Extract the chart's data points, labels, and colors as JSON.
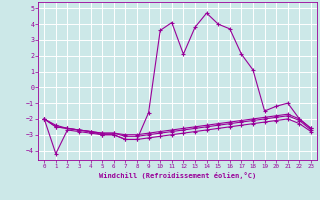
{
  "xlabel": "Windchill (Refroidissement éolien,°C)",
  "bg_color": "#cce8e8",
  "grid_color": "#aacccc",
  "line_color": "#990099",
  "xlim": [
    -0.5,
    23.5
  ],
  "ylim": [
    -4.6,
    5.4
  ],
  "yticks": [
    -4,
    -3,
    -2,
    -1,
    0,
    1,
    2,
    3,
    4,
    5
  ],
  "xticks": [
    0,
    1,
    2,
    3,
    4,
    5,
    6,
    7,
    8,
    9,
    10,
    11,
    12,
    13,
    14,
    15,
    16,
    17,
    18,
    19,
    20,
    21,
    22,
    23
  ],
  "series1": {
    "x": [
      0,
      1,
      2,
      3,
      4,
      5,
      6,
      7,
      8,
      9,
      10,
      11,
      12,
      13,
      14,
      15,
      16,
      17,
      18,
      19,
      20,
      21,
      22,
      23
    ],
    "y": [
      -2.0,
      -2.4,
      -2.6,
      -2.7,
      -2.8,
      -3.0,
      -3.0,
      -3.3,
      -3.3,
      -1.6,
      3.6,
      4.1,
      2.1,
      3.8,
      4.7,
      4.0,
      3.7,
      2.1,
      1.1,
      -1.5,
      -1.2,
      -1.0,
      -2.0,
      -2.6
    ]
  },
  "series2": {
    "x": [
      0,
      1,
      2,
      3,
      4,
      5,
      6,
      7,
      8,
      9,
      10,
      11,
      12,
      13,
      14,
      15,
      16,
      17,
      18,
      19,
      20,
      21,
      22,
      23
    ],
    "y": [
      -2.0,
      -2.5,
      -2.6,
      -2.7,
      -2.8,
      -2.9,
      -2.9,
      -3.0,
      -3.0,
      -2.9,
      -2.8,
      -2.7,
      -2.6,
      -2.5,
      -2.4,
      -2.3,
      -2.2,
      -2.1,
      -2.0,
      -1.9,
      -1.8,
      -1.7,
      -2.0,
      -2.6
    ]
  },
  "series3": {
    "x": [
      0,
      1,
      2,
      3,
      4,
      5,
      6,
      7,
      8,
      9,
      10,
      11,
      12,
      13,
      14,
      15,
      16,
      17,
      18,
      19,
      20,
      21,
      22,
      23
    ],
    "y": [
      -2.0,
      -2.5,
      -2.6,
      -2.7,
      -2.8,
      -2.9,
      -2.9,
      -3.1,
      -3.1,
      -3.0,
      -2.9,
      -2.8,
      -2.7,
      -2.6,
      -2.5,
      -2.4,
      -2.3,
      -2.2,
      -2.1,
      -2.0,
      -1.9,
      -1.8,
      -2.1,
      -2.7
    ]
  },
  "series4": {
    "x": [
      0,
      1,
      2,
      3,
      4,
      5,
      6,
      7,
      8,
      9,
      10,
      11,
      12,
      13,
      14,
      15,
      16,
      17,
      18,
      19,
      20,
      21,
      22,
      23
    ],
    "y": [
      -2.0,
      -4.2,
      -2.7,
      -2.8,
      -2.9,
      -3.0,
      -3.0,
      -3.3,
      -3.3,
      -3.2,
      -3.1,
      -3.0,
      -2.9,
      -2.8,
      -2.7,
      -2.6,
      -2.5,
      -2.4,
      -2.3,
      -2.2,
      -2.1,
      -2.0,
      -2.3,
      -2.8
    ]
  }
}
